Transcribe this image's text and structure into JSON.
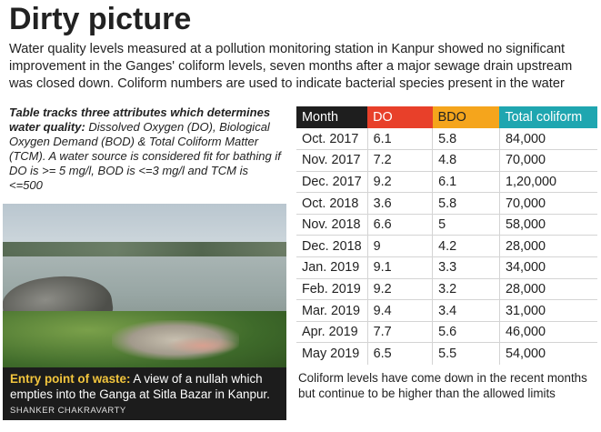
{
  "headline": "Dirty picture",
  "intro": "Water quality levels measured at a pollution monitoring station in Kanpur showed no significant improvement in the Ganges' coliform levels, seven months after a major sewage drain upstream was closed down. Coliform numbers are used to indicate bacterial species present in the water",
  "note": {
    "bold": "Table tracks three attributes which determines water quality:",
    "italic": " Dissolved Oxygen (DO), Biological Oxygen Demand (BOD) & Total Coliform Matter (TCM). A water source is considered fit for bathing if DO is >= 5 mg/l, BOD is <=3 mg/l and TCM is <=500"
  },
  "photo": {
    "caption_lead": "Entry point of waste:",
    "caption_text": " A view of a nullah which empties into the Ganga at Sitla Bazar in Kanpur.",
    "credit": "SHANKER CHAKRAVARTY"
  },
  "table": {
    "headers": [
      "Month",
      "DO",
      "BDO",
      "Total coliform"
    ],
    "header_colors": [
      "#1e1e1e",
      "#e8402a",
      "#f5a51c",
      "#1fa6b0"
    ],
    "rows": [
      [
        "Oct. 2017",
        "6.1",
        "5.8",
        "84,000"
      ],
      [
        "Nov. 2017",
        "7.2",
        "4.8",
        "70,000"
      ],
      [
        "Dec. 2017",
        "9.2",
        "6.1",
        "1,20,000"
      ],
      [
        "Oct. 2018",
        "3.6",
        "5.8",
        "70,000"
      ],
      [
        "Nov. 2018",
        "6.6",
        "5",
        "58,000"
      ],
      [
        "Dec. 2018",
        "9",
        "4.2",
        "28,000"
      ],
      [
        "Jan. 2019",
        "9.1",
        "3.3",
        "34,000"
      ],
      [
        "Feb. 2019",
        "9.2",
        "3.2",
        "28,000"
      ],
      [
        "Mar. 2019",
        "9.4",
        "3.4",
        "31,000"
      ],
      [
        "Apr. 2019",
        "7.7",
        "5.6",
        "46,000"
      ],
      [
        "May 2019",
        "6.5",
        "5.5",
        "54,000"
      ]
    ]
  },
  "conclusion": "Coliform levels have come down in the recent months but continue to be higher than the allowed limits"
}
